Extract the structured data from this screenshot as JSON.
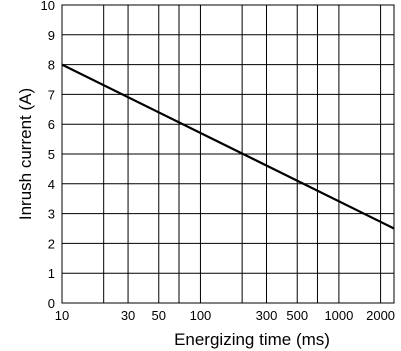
{
  "chart_data": {
    "type": "line",
    "title": "",
    "xlabel": "Energizing time (ms)",
    "ylabel": "Inrush current  (A)",
    "x_scale": "log",
    "xlim": [
      10,
      2500
    ],
    "ylim": [
      0,
      10
    ],
    "grid": true,
    "x_ticks": [
      10,
      30,
      50,
      100,
      300,
      500,
      1000,
      2000
    ],
    "x_tick_labels": [
      "10",
      "30",
      "50",
      "100",
      "300",
      "500",
      "1000",
      "2000"
    ],
    "x_gridlines": [
      10,
      20,
      30,
      50,
      70,
      100,
      200,
      300,
      500,
      700,
      1000,
      2000
    ],
    "y_ticks": [
      0,
      1,
      2,
      3,
      4,
      5,
      6,
      7,
      8,
      9,
      10
    ],
    "y_tick_labels": [
      "0",
      "1",
      "2",
      "3",
      "4",
      "5",
      "6",
      "7",
      "8",
      "9",
      "10"
    ],
    "series": [
      {
        "x": [
          10,
          2500
        ],
        "y": [
          8,
          2.5
        ],
        "color": "#000000"
      }
    ]
  }
}
